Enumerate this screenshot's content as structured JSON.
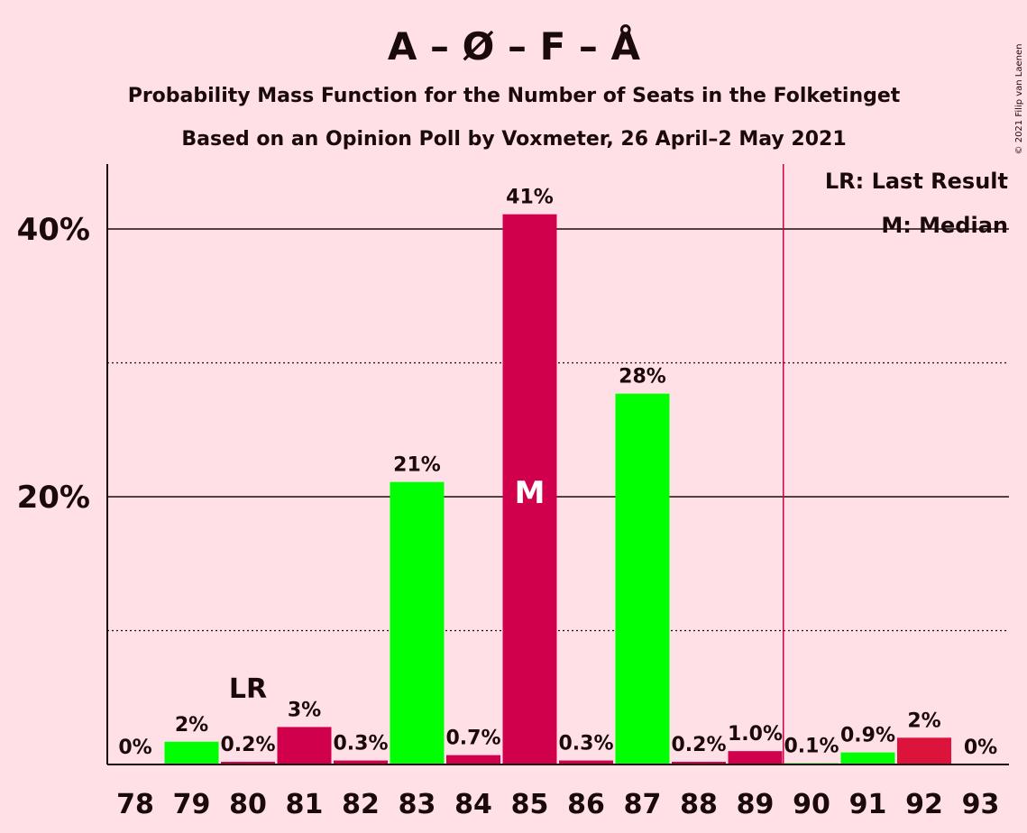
{
  "chart_data": {
    "type": "bar",
    "title": "A – Ø – F – Å",
    "subtitle": "Probability Mass Function for the Number of Seats in the Folketinget",
    "subtitle2": "Based on an Opinion Poll by Voxmeter, 26 April–2 May 2021",
    "copyright": "© 2021 Filip van Laenen",
    "categories": [
      "78",
      "79",
      "80",
      "81",
      "82",
      "83",
      "84",
      "85",
      "86",
      "87",
      "88",
      "89",
      "90",
      "91",
      "92",
      "93"
    ],
    "values": [
      0,
      1.7,
      0.2,
      2.8,
      0.3,
      21.1,
      0.7,
      41.1,
      0.3,
      27.7,
      0.2,
      1.0,
      0.1,
      0.9,
      2.0,
      0
    ],
    "labels": [
      "0%",
      "2%",
      "0.2%",
      "3%",
      "0.3%",
      "21%",
      "0.7%",
      "41%",
      "0.3%",
      "28%",
      "0.2%",
      "1.0%",
      "0.1%",
      "0.9%",
      "2%",
      "0%"
    ],
    "colors": [
      "#00ff00",
      "#00ff00",
      "#d1004c",
      "#d1004c",
      "#d1004c",
      "#00ff00",
      "#d1004c",
      "#d1004c",
      "#d1004c",
      "#00ff00",
      "#d1004c",
      "#d1004c",
      "#00ff00",
      "#00ff00",
      "#dc143c",
      "#00ff00"
    ],
    "ylim": [
      0,
      45
    ],
    "yticks": [
      {
        "value": 20,
        "label": "20%"
      },
      {
        "value": 40,
        "label": "40%"
      }
    ],
    "dotted_gridlines": [
      10,
      30
    ],
    "last_result": {
      "category": "80",
      "label": "LR"
    },
    "median": {
      "category": "85",
      "label": "M"
    },
    "majority_line_after": "89",
    "legend": [
      "LR: Last Result",
      "M: Median"
    ],
    "legend_position": "top-right",
    "palette": {
      "background": "#ffe0e6",
      "text": "#1a0a0a",
      "majority_line": "#d1004c"
    }
  }
}
